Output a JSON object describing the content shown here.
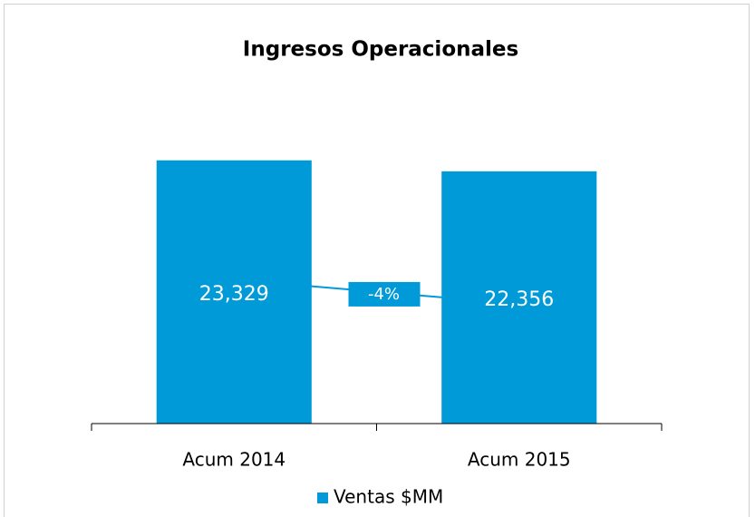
{
  "chart_data": {
    "type": "bar",
    "title": "Ingresos Operacionales",
    "categories": [
      "Acum 2014",
      "Acum 2015"
    ],
    "series": [
      {
        "name": "Ventas $MM",
        "color": "#009ad9",
        "values": [
          23329,
          22356
        ],
        "value_labels": [
          "23,329",
          "22,356"
        ]
      }
    ],
    "ylim": [
      0,
      25000
    ],
    "annotation": "-4%",
    "legend": "bottom"
  }
}
